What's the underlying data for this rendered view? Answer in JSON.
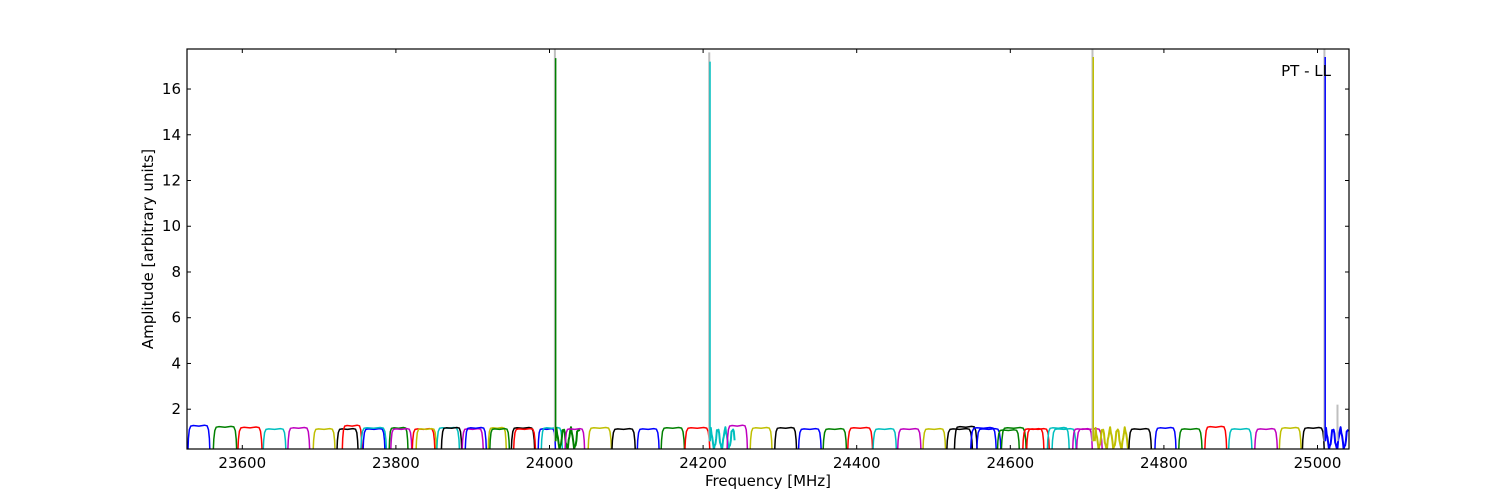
{
  "chart_data": {
    "type": "line",
    "title": "",
    "annotation": "PT - LL",
    "xlabel": "Frequency [MHz]",
    "ylabel": "Amplitude [arbitrary units]",
    "xlim": [
      23528,
      25041
    ],
    "ylim": [
      0.26,
      17.75
    ],
    "grid": false,
    "xticks": [
      23600,
      23800,
      24000,
      24200,
      24400,
      24600,
      24800,
      25000
    ],
    "xtick_labels": [
      "23600",
      "23800",
      "24000",
      "24200",
      "24400",
      "24600",
      "24800",
      "25000"
    ],
    "yticks": [
      2,
      4,
      6,
      8,
      10,
      12,
      14,
      16
    ],
    "ytick_labels": [
      "2",
      "4",
      "6",
      "8",
      "10",
      "12",
      "14",
      "16"
    ],
    "colors": {
      "b": "#0000ff",
      "g": "#008000",
      "r": "#ff0000",
      "c": "#00bfbf",
      "m": "#bf00bf",
      "y": "#bfbf00",
      "k": "#000000",
      "grey": "#bfbfbf"
    },
    "channels": [
      {
        "color": "b",
        "start": 23529,
        "end": 23558,
        "level": 1.3
      },
      {
        "color": "g",
        "start": 23562,
        "end": 23593,
        "level": 1.25
      },
      {
        "color": "r",
        "start": 23594,
        "end": 23626,
        "level": 1.22
      },
      {
        "color": "c",
        "start": 23627,
        "end": 23657,
        "level": 1.15
      },
      {
        "color": "m",
        "start": 23659,
        "end": 23688,
        "level": 1.2
      },
      {
        "color": "y",
        "start": 23692,
        "end": 23721,
        "level": 1.15
      },
      {
        "color": "k",
        "start": 23723,
        "end": 23751,
        "level": 1.15
      },
      {
        "color": "r",
        "start": 23730,
        "end": 23756,
        "level": 1.3
      },
      {
        "color": "b",
        "start": 23757,
        "end": 23786,
        "level": 1.15
      },
      {
        "color": "c",
        "start": 23754,
        "end": 23788,
        "level": 1.2
      },
      {
        "color": "g",
        "start": 23791,
        "end": 23816,
        "level": 1.2
      },
      {
        "color": "m",
        "start": 23793,
        "end": 23821,
        "level": 1.15
      },
      {
        "color": "r",
        "start": 23821,
        "end": 23851,
        "level": 1.15
      },
      {
        "color": "y",
        "start": 23826,
        "end": 23853,
        "level": 1.15
      },
      {
        "color": "c",
        "start": 23853,
        "end": 23883,
        "level": 1.2
      },
      {
        "color": "k",
        "start": 23859,
        "end": 23886,
        "level": 1.2
      },
      {
        "color": "m",
        "start": 23886,
        "end": 23914,
        "level": 1.15
      },
      {
        "color": "b",
        "start": 23890,
        "end": 23918,
        "level": 1.2
      },
      {
        "color": "y",
        "start": 23920,
        "end": 23944,
        "level": 1.2
      },
      {
        "color": "g",
        "start": 23922,
        "end": 23948,
        "level": 1.15
      },
      {
        "color": "k",
        "start": 23950,
        "end": 23981,
        "level": 1.2
      },
      {
        "color": "r",
        "start": 23953,
        "end": 23982,
        "level": 1.15
      },
      {
        "color": "b",
        "start": 23985,
        "end": 24008,
        "level": 1.15
      },
      {
        "color": "c",
        "start": 23989,
        "end": 24017,
        "level": 1.2
      },
      {
        "color": "g",
        "start": 24008,
        "end": 24039,
        "level": null,
        "noisy": true
      },
      {
        "color": "m",
        "start": 24020,
        "end": 24046,
        "level": 1.15
      },
      {
        "color": "y",
        "start": 24050,
        "end": 24081,
        "level": 1.2
      },
      {
        "color": "k",
        "start": 24081,
        "end": 24112,
        "level": 1.15
      },
      {
        "color": "b",
        "start": 24114,
        "end": 24143,
        "level": 1.15
      },
      {
        "color": "g",
        "start": 24145,
        "end": 24176,
        "level": 1.2
      },
      {
        "color": "r",
        "start": 24176,
        "end": 24209,
        "level": 1.2
      },
      {
        "color": "c",
        "start": 24209,
        "end": 24241,
        "level": null,
        "noisy": true
      },
      {
        "color": "m",
        "start": 24231,
        "end": 24258,
        "level": 1.3
      },
      {
        "color": "y",
        "start": 24261,
        "end": 24290,
        "level": 1.2
      },
      {
        "color": "k",
        "start": 24293,
        "end": 24322,
        "level": 1.2
      },
      {
        "color": "b",
        "start": 24324,
        "end": 24354,
        "level": 1.15
      },
      {
        "color": "g",
        "start": 24356,
        "end": 24387,
        "level": 1.15
      },
      {
        "color": "r",
        "start": 24388,
        "end": 24421,
        "level": 1.2
      },
      {
        "color": "c",
        "start": 24421,
        "end": 24452,
        "level": 1.15
      },
      {
        "color": "m",
        "start": 24453,
        "end": 24484,
        "level": 1.15
      },
      {
        "color": "y",
        "start": 24486,
        "end": 24516,
        "level": 1.15
      },
      {
        "color": "k",
        "start": 24517,
        "end": 24551,
        "level": 1.15
      },
      {
        "color": "k",
        "start": 24527,
        "end": 24557,
        "level": 1.25
      },
      {
        "color": "b",
        "start": 24548,
        "end": 24582,
        "level": 1.2
      },
      {
        "color": "b",
        "start": 24556,
        "end": 24588,
        "level": 1.15
      },
      {
        "color": "g",
        "start": 24583,
        "end": 24612,
        "level": 1.1
      },
      {
        "color": "g",
        "start": 24588,
        "end": 24621,
        "level": 1.2
      },
      {
        "color": "r",
        "start": 24616,
        "end": 24644,
        "level": 1.15
      },
      {
        "color": "r",
        "start": 24621,
        "end": 24651,
        "level": 1.15
      },
      {
        "color": "c",
        "start": 24648,
        "end": 24677,
        "level": 1.2
      },
      {
        "color": "c",
        "start": 24654,
        "end": 24686,
        "level": 1.15
      },
      {
        "color": "m",
        "start": 24681,
        "end": 24707,
        "level": 1.15
      },
      {
        "color": "m",
        "start": 24686,
        "end": 24720,
        "level": 1.15
      },
      {
        "color": "y",
        "start": 24710,
        "end": 24755,
        "level": null,
        "noisy": true
      },
      {
        "color": "k",
        "start": 24754,
        "end": 24784,
        "level": 1.15
      },
      {
        "color": "b",
        "start": 24788,
        "end": 24816,
        "level": 1.2
      },
      {
        "color": "g",
        "start": 24819,
        "end": 24850,
        "level": 1.15
      },
      {
        "color": "r",
        "start": 24853,
        "end": 24882,
        "level": 1.25
      },
      {
        "color": "c",
        "start": 24884,
        "end": 24915,
        "level": 1.15
      },
      {
        "color": "m",
        "start": 24918,
        "end": 24948,
        "level": 1.15
      },
      {
        "color": "y",
        "start": 24950,
        "end": 24979,
        "level": 1.2
      },
      {
        "color": "k",
        "start": 24980,
        "end": 25009,
        "level": 1.2
      },
      {
        "color": "b",
        "start": 25010,
        "end": 25040,
        "level": null,
        "noisy": true
      }
    ],
    "spikes": [
      {
        "color": "grey",
        "freq": 24007,
        "peak": 18.0
      },
      {
        "color": "grey",
        "freq": 24208,
        "peak": 17.6
      },
      {
        "color": "grey",
        "freq": 24707,
        "peak": 18.0
      },
      {
        "color": "grey",
        "freq": 25009,
        "peak": 18.0
      },
      {
        "color": "grey",
        "freq": 25026,
        "peak": 2.2
      },
      {
        "color": "g",
        "freq": 24008,
        "peak": 17.35
      },
      {
        "color": "c",
        "freq": 24209,
        "peak": 17.2
      },
      {
        "color": "y",
        "freq": 24708,
        "peak": 17.4
      },
      {
        "color": "b",
        "freq": 25010,
        "peak": 17.4
      }
    ]
  }
}
